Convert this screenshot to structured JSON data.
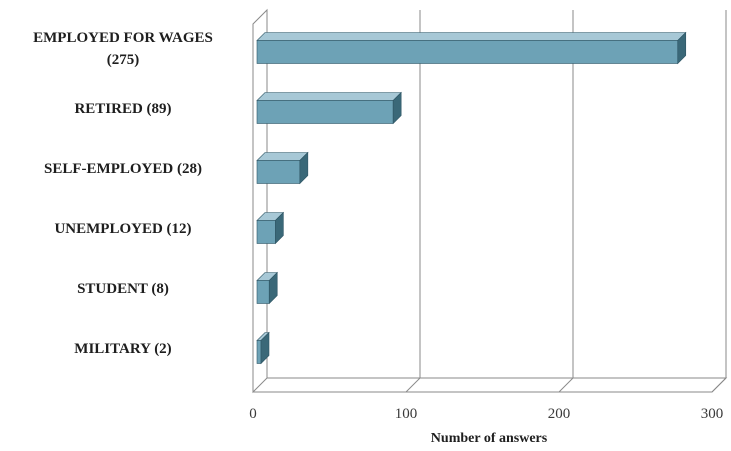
{
  "chart_data": {
    "type": "bar",
    "orientation": "horizontal",
    "style": "3d",
    "categories": [
      [
        "EMPLOYED FOR WAGES",
        "(275)"
      ],
      [
        "RETIRED (89)"
      ],
      [
        "SELF-EMPLOYED (28)"
      ],
      [
        "UNEMPLOYED (12)"
      ],
      [
        "STUDENT (8)"
      ],
      [
        "MILITARY (2)"
      ]
    ],
    "values": [
      275,
      89,
      28,
      12,
      8,
      2
    ],
    "xlabel": "Number of answers",
    "ylabel": "",
    "xlim": [
      0,
      300
    ],
    "xticks": [
      0,
      100,
      200,
      300
    ],
    "grid": true,
    "legend": "none",
    "colors": {
      "bar_front": "#6da2b6",
      "bar_top": "#a7c8d6",
      "bar_side": "#3a6878",
      "bar_edge": "#2e5564",
      "grid": "#8a8a8a"
    }
  }
}
